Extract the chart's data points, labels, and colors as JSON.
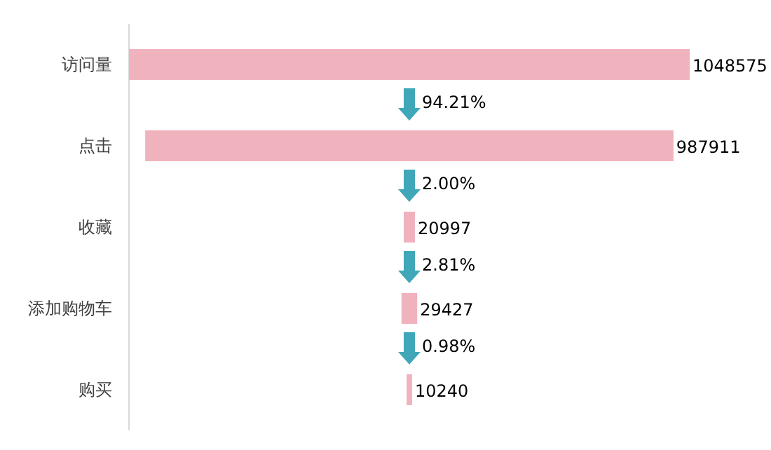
{
  "chart_data": {
    "type": "other",
    "categories": [
      "访问量",
      "点击",
      "收藏",
      "添加购物车",
      "购买"
    ],
    "values": [
      1048575,
      987911,
      20997,
      29427,
      10240
    ],
    "color": "#f0b3be",
    "data_labels": true,
    "annotations": [
      "94.21%",
      "2.00%",
      "2.81%",
      "0.98%"
    ]
  }
}
